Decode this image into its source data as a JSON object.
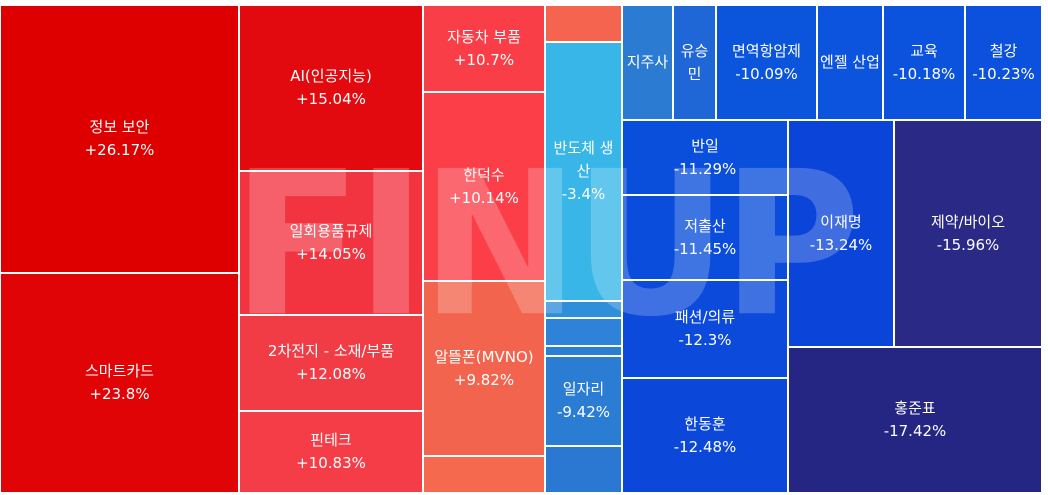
{
  "chart_data": {
    "type": "treemap",
    "title": "",
    "watermark": "FINUP",
    "tiles": [
      {
        "id": "info-security",
        "name": "정보 보안",
        "change": "+26.17%",
        "value": 26.17,
        "color": "#de0000"
      },
      {
        "id": "smartcard",
        "name": "스마트카드",
        "change": "+23.8%",
        "value": 23.8,
        "color": "#e00407"
      },
      {
        "id": "ai",
        "name": "AI(인공지능)",
        "change": "+15.04%",
        "value": 15.04,
        "color": "#e20a0f"
      },
      {
        "id": "disposable",
        "name": "일회용품규제",
        "change": "+14.05%",
        "value": 14.05,
        "color": "#f23440"
      },
      {
        "id": "battery",
        "name": "2차전지 - 소재/부품",
        "change": "+12.08%",
        "value": 12.08,
        "color": "#f23c45"
      },
      {
        "id": "fintech",
        "name": "핀테크",
        "change": "+10.83%",
        "value": 10.83,
        "color": "#f53d47"
      },
      {
        "id": "auto-parts",
        "name": "자동차 부품",
        "change": "+10.7%",
        "value": 10.7,
        "color": "#fa3e47"
      },
      {
        "id": "handeoksu",
        "name": "한덕수",
        "change": "+10.14%",
        "value": 10.14,
        "color": "#fb3e47"
      },
      {
        "id": "mvno",
        "name": "알뜰폰(MVNO)",
        "change": "+9.82%",
        "value": 9.82,
        "color": "#f2644d"
      },
      {
        "id": "mvno-small",
        "name": "",
        "change": "",
        "value": null,
        "color": "#f56a4f"
      },
      {
        "id": "top-small",
        "name": "",
        "change": "",
        "value": null,
        "color": "#f5644e"
      },
      {
        "id": "semiconductor",
        "name": "반도체 생산",
        "change": "-3.4%",
        "value": -3.4,
        "color": "#38b6e8"
      },
      {
        "id": "mid-small-1",
        "name": "",
        "change": "",
        "value": null,
        "color": "#2f8fdb"
      },
      {
        "id": "mid-small-2",
        "name": "",
        "change": "",
        "value": null,
        "color": "#2e82d8"
      },
      {
        "id": "mid-small-3",
        "name": "",
        "change": "",
        "value": null,
        "color": "#2a7fd5"
      },
      {
        "id": "jobs",
        "name": "일자리",
        "change": "-9.42%",
        "value": -9.42,
        "color": "#2b7dd4"
      },
      {
        "id": "jobs-small",
        "name": "",
        "change": "",
        "value": null,
        "color": "#2a78d2"
      },
      {
        "id": "holding",
        "name": "지주사",
        "change": "",
        "value": null,
        "color": "#2c7bd3"
      },
      {
        "id": "yuseungmin",
        "name": "유승민",
        "change": "",
        "value": null,
        "color": "#1f66d6"
      },
      {
        "id": "immune",
        "name": "면역항암제",
        "change": "-10.09%",
        "value": -10.09,
        "color": "#0b54dc"
      },
      {
        "id": "engel",
        "name": "엔젤 산업",
        "change": "",
        "value": null,
        "color": "#0c53dd"
      },
      {
        "id": "education",
        "name": "교육",
        "change": "-10.18%",
        "value": -10.18,
        "color": "#0b52dd"
      },
      {
        "id": "steel",
        "name": "철강",
        "change": "-10.23%",
        "value": -10.23,
        "color": "#0b51dd"
      },
      {
        "id": "banil",
        "name": "반일",
        "change": "-11.29%",
        "value": -11.29,
        "color": "#0a4edc"
      },
      {
        "id": "low-birth",
        "name": "저출산",
        "change": "-11.45%",
        "value": -11.45,
        "color": "#0a4ddc"
      },
      {
        "id": "fashion",
        "name": "패션/의류",
        "change": "-12.3%",
        "value": -12.3,
        "color": "#0b4adb"
      },
      {
        "id": "handonghun",
        "name": "한동훈",
        "change": "-12.48%",
        "value": -12.48,
        "color": "#0b48da"
      },
      {
        "id": "leejaemyung",
        "name": "이재명",
        "change": "-13.24%",
        "value": -13.24,
        "color": "#0b44d8"
      },
      {
        "id": "pharma",
        "name": "제약/바이오",
        "change": "-15.96%",
        "value": -15.96,
        "color": "#2a2a86"
      },
      {
        "id": "hongjunpyo",
        "name": "홍준표",
        "change": "-17.42%",
        "value": -17.42,
        "color": "#252583"
      }
    ]
  }
}
